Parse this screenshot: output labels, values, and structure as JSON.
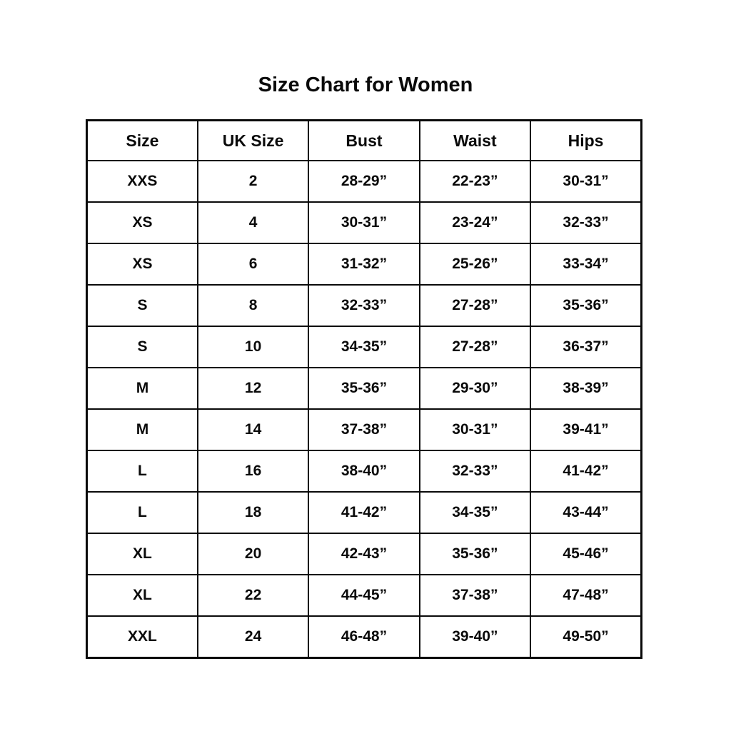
{
  "title": "Size Chart for Women",
  "table": {
    "column_keys": [
      "size",
      "uk-size",
      "bust",
      "waist",
      "hips"
    ],
    "headers": [
      "Size",
      "UK Size",
      "Bust",
      "Waist",
      "Hips"
    ],
    "rows": [
      [
        "XXS",
        "2",
        "28-29”",
        "22-23”",
        "30-31”"
      ],
      [
        "XS",
        "4",
        "30-31”",
        "23-24”",
        "32-33”"
      ],
      [
        "XS",
        "6",
        "31-32”",
        "25-26”",
        "33-34”"
      ],
      [
        "S",
        "8",
        "32-33”",
        "27-28”",
        "35-36”"
      ],
      [
        "S",
        "10",
        "34-35”",
        "27-28”",
        "36-37”"
      ],
      [
        "M",
        "12",
        "35-36”",
        "29-30”",
        "38-39”"
      ],
      [
        "M",
        "14",
        "37-38”",
        "30-31”",
        "39-41”"
      ],
      [
        "L",
        "16",
        "38-40”",
        "32-33”",
        "41-42”"
      ],
      [
        "L",
        "18",
        "41-42”",
        "34-35”",
        "43-44”"
      ],
      [
        "XL",
        "20",
        "42-43”",
        "35-36”",
        "45-46”"
      ],
      [
        "XL",
        "22",
        "44-45”",
        "37-38”",
        "47-48”"
      ],
      [
        "XXL",
        "24",
        "46-48”",
        "39-40”",
        "49-50”"
      ]
    ],
    "colors": {
      "border": "#0a0a0a",
      "text": "#0a0a0a",
      "background": "#ffffff"
    }
  }
}
